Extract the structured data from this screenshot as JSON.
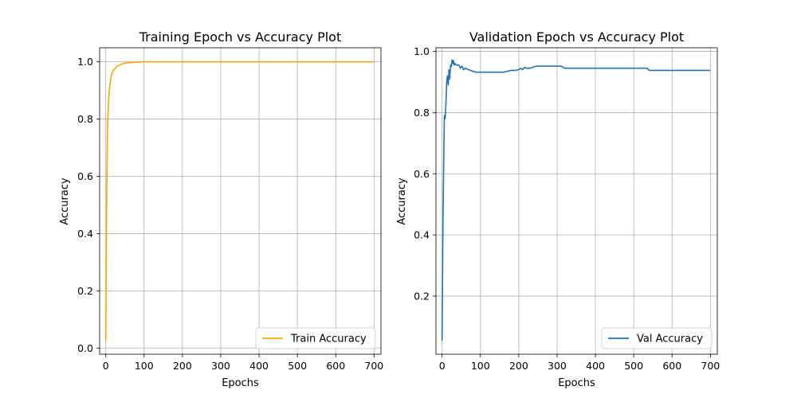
{
  "chart_data": [
    {
      "type": "line",
      "title": "Training Epoch vs Accuracy Plot",
      "xlabel": "Epochs",
      "ylabel": "Accuracy",
      "xlim": [
        -16,
        718
      ],
      "ylim": [
        -0.0215,
        1.0491
      ],
      "xticks": [
        0,
        100,
        200,
        300,
        400,
        500,
        600,
        700
      ],
      "yticks": [
        0.0,
        0.2,
        0.4,
        0.6,
        0.8,
        1.0
      ],
      "xtick_labels": [
        "0",
        "100",
        "200",
        "300",
        "400",
        "500",
        "600",
        "700"
      ],
      "ytick_labels": [
        "0.0",
        "0.2",
        "0.4",
        "0.6",
        "0.8",
        "1.0"
      ],
      "grid": true,
      "legend_position": "lower-right",
      "series": [
        {
          "name": "Train Accuracy",
          "color": "#FFA500",
          "x": [
            0,
            1,
            2,
            3,
            4,
            5,
            6,
            7,
            8,
            10,
            12,
            15,
            18,
            20,
            25,
            30,
            40,
            50,
            60,
            70,
            80,
            100,
            150,
            200,
            300,
            400,
            500,
            600,
            700
          ],
          "y": [
            0.027,
            0.25,
            0.45,
            0.6,
            0.7,
            0.78,
            0.82,
            0.85,
            0.88,
            0.91,
            0.93,
            0.955,
            0.965,
            0.97,
            0.978,
            0.985,
            0.992,
            0.995,
            0.997,
            0.998,
            0.999,
            1.0,
            1.0,
            1.0,
            1.0,
            1.0,
            1.0,
            1.0,
            1.0
          ]
        }
      ]
    },
    {
      "type": "line",
      "title": "Validation Epoch vs Accuracy Plot",
      "xlabel": "Epochs",
      "ylabel": "Accuracy",
      "xlim": [
        -16,
        718
      ],
      "ylim": [
        0.0099,
        1.0119
      ],
      "xticks": [
        0,
        100,
        200,
        300,
        400,
        500,
        600,
        700
      ],
      "yticks": [
        0.2,
        0.4,
        0.6,
        0.8,
        1.0
      ],
      "xtick_labels": [
        "0",
        "100",
        "200",
        "300",
        "400",
        "500",
        "600",
        "700"
      ],
      "ytick_labels": [
        "0.2",
        "0.4",
        "0.6",
        "0.8",
        "1.0"
      ],
      "grid": true,
      "legend_position": "lower-right",
      "series": [
        {
          "name": "Val Accuracy",
          "color": "#1F77B4",
          "x": [
            0,
            2,
            4,
            6,
            8,
            10,
            12,
            14,
            16,
            18,
            20,
            22,
            24,
            26,
            28,
            30,
            32,
            34,
            36,
            40,
            44,
            48,
            52,
            56,
            60,
            70,
            80,
            90,
            100,
            120,
            140,
            160,
            180,
            190,
            200,
            205,
            210,
            215,
            220,
            230,
            240,
            250,
            260,
            280,
            300,
            310,
            320,
            400,
            450,
            500,
            535,
            540,
            600,
            650,
            700
          ],
          "y": [
            0.055,
            0.4,
            0.62,
            0.79,
            0.78,
            0.83,
            0.9,
            0.92,
            0.89,
            0.94,
            0.91,
            0.955,
            0.95,
            0.972,
            0.96,
            0.97,
            0.955,
            0.96,
            0.957,
            0.955,
            0.955,
            0.945,
            0.952,
            0.94,
            0.945,
            0.94,
            0.935,
            0.932,
            0.932,
            0.932,
            0.932,
            0.932,
            0.938,
            0.938,
            0.94,
            0.945,
            0.94,
            0.948,
            0.945,
            0.945,
            0.95,
            0.952,
            0.952,
            0.952,
            0.952,
            0.952,
            0.945,
            0.945,
            0.945,
            0.945,
            0.945,
            0.938,
            0.938,
            0.938,
            0.938
          ]
        }
      ]
    }
  ]
}
